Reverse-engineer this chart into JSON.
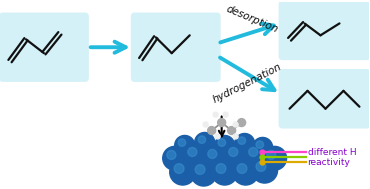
{
  "bg_color": "#ffffff",
  "box_color": "#d4f1f8",
  "arrow_color": "#22bbdd",
  "line_color": "#111111",
  "pt_sphere_color": "#1a5fa8",
  "pt_sphere_highlight": "#3a8fd0",
  "line_pink": "#ff44cc",
  "line_green": "#88cc00",
  "line_yellow": "#ddaa00",
  "label_color": "#8800cc",
  "label_different_H": "different H",
  "label_reactivity": "reactivity",
  "text_desorption": "desorption",
  "text_hydrogenation": "hydrogenation",
  "figw": 3.7,
  "figh": 1.89,
  "dpi": 100
}
